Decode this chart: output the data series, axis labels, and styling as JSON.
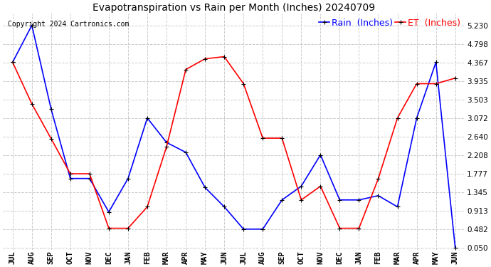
{
  "title": "Evapotranspiration vs Rain per Month (Inches) 20240709",
  "copyright": "Copyright 2024 Cartronics.com",
  "months": [
    "JUL",
    "AUG",
    "SEP",
    "OCT",
    "NOV",
    "DEC",
    "JAN",
    "FEB",
    "MAR",
    "APR",
    "MAY",
    "JUN",
    "JUL",
    "AUG",
    "SEP",
    "OCT",
    "NOV",
    "DEC",
    "JAN",
    "FEB",
    "MAR",
    "APR",
    "MAY",
    "JUN"
  ],
  "rain": [
    4.37,
    5.23,
    3.28,
    1.66,
    1.66,
    0.88,
    1.66,
    3.07,
    2.5,
    2.27,
    1.45,
    1.0,
    0.48,
    0.48,
    1.16,
    1.48,
    2.21,
    1.16,
    1.16,
    1.26,
    1.0,
    3.07,
    4.37,
    0.05
  ],
  "et": [
    4.37,
    3.4,
    2.59,
    1.77,
    1.77,
    0.5,
    0.5,
    1.0,
    2.4,
    4.2,
    4.45,
    4.5,
    3.87,
    2.6,
    2.6,
    1.16,
    1.48,
    0.5,
    0.5,
    1.65,
    3.07,
    3.87,
    3.87,
    4.0
  ],
  "rain_color": "#0000FF",
  "et_color": "#FF0000",
  "background_color": "#FFFFFF",
  "grid_color": "#CCCCCC",
  "title_fontsize": 10,
  "copyright_fontsize": 7,
  "legend_fontsize": 9,
  "tick_fontsize": 7.5,
  "yticks": [
    0.05,
    0.482,
    0.913,
    1.345,
    1.777,
    2.208,
    2.64,
    3.072,
    3.503,
    3.935,
    4.367,
    4.798,
    5.23
  ],
  "ymin": 0.0,
  "ymax": 5.5,
  "marker": "+",
  "markersize": 5,
  "linewidth": 1.2
}
